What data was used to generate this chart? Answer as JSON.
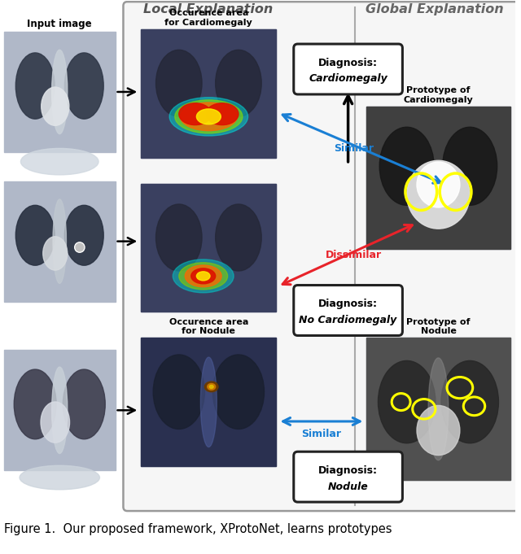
{
  "title_local": "Local Explanation",
  "title_global": "Global Explanation",
  "label_input": "Input image",
  "label_occur1": "Occurence area\nfor Cardiomegaly",
  "label_occur2": "Occurence area\nfor Nodule",
  "label_proto1": "Prototype of\nCardiomegaly",
  "label_proto2": "Prototype of\nNodule",
  "diag1_line1": "Diagnosis:",
  "diag1_line2": "Cardiomegaly",
  "diag2_line1": "Diagnosis:",
  "diag2_line2": "No Cardiomegaly",
  "diag3_line1": "Diagnosis:",
  "diag3_line2": "Nodule",
  "similar": "Similar",
  "dissimilar": "Dissimilar",
  "caption": "Figure 1.  Our proposed framework, XProtoNet, learns prototypes",
  "bg_color": "#ffffff",
  "panel_edge": "#aaaaaa",
  "local_panel_bg": "#f8f8f8",
  "global_panel_bg": "#f0f0f0",
  "arrow_black": "#111111",
  "arrow_blue": "#1a7fd4",
  "arrow_red": "#e8232a",
  "similar_color": "#1a7fd4",
  "dissimilar_color": "#e8232a",
  "title_color_local": "#555555",
  "title_color_global": "#666666",
  "xray_bg": "#8ca0b8",
  "xray_dark": "#202838",
  "heatmap_colors": [
    "#00008b",
    "#0000ff",
    "#00ffff",
    "#00ff00",
    "#ffff00",
    "#ff8800",
    "#ff0000"
  ],
  "yellow_outline": "#ffff00"
}
